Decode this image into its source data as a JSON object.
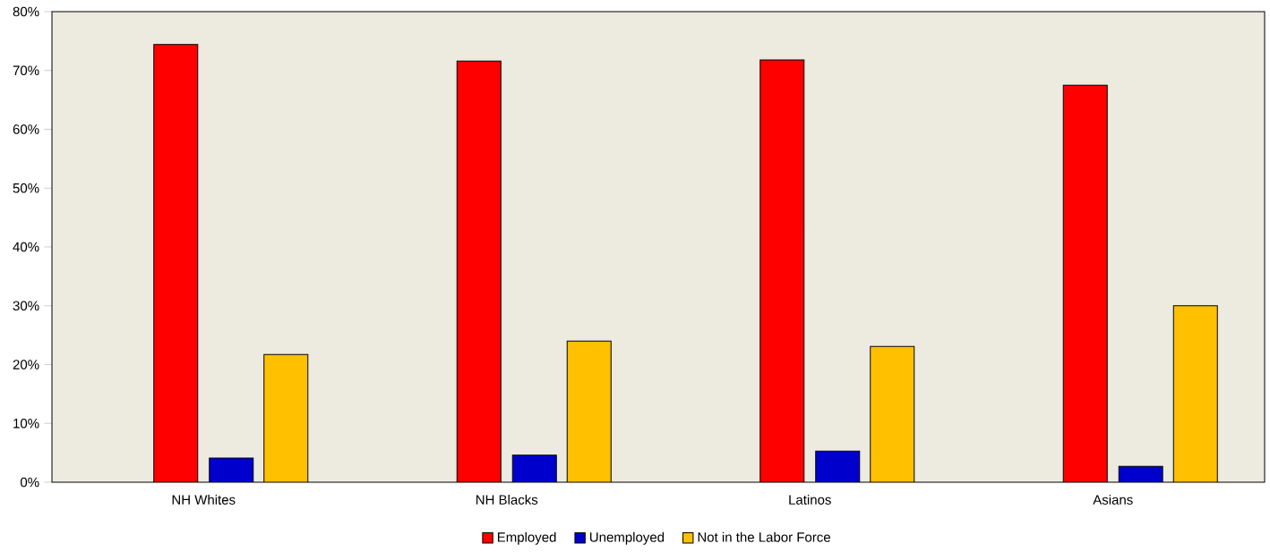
{
  "chart_data": {
    "type": "bar",
    "categories": [
      "NH Whites",
      "NH Blacks",
      "Latinos",
      "Asians"
    ],
    "series": [
      {
        "name": "Employed",
        "color": "#ff0000",
        "values": [
          74.4,
          71.6,
          71.8,
          67.5
        ]
      },
      {
        "name": "Unemployed",
        "color": "#0000cc",
        "values": [
          4.1,
          4.6,
          5.3,
          2.7
        ]
      },
      {
        "name": "Not in the Labor Force",
        "color": "#ffc000",
        "values": [
          21.7,
          24.0,
          23.1,
          30.0
        ]
      }
    ],
    "ylim": [
      0,
      80
    ],
    "yticks": [
      {
        "value": 0,
        "label": "0%"
      },
      {
        "value": 10,
        "label": "10%"
      },
      {
        "value": 20,
        "label": "20%"
      },
      {
        "value": 30,
        "label": "30%"
      },
      {
        "value": 40,
        "label": "40%"
      },
      {
        "value": 50,
        "label": "50%"
      },
      {
        "value": 60,
        "label": "60%"
      },
      {
        "value": 70,
        "label": "70%"
      },
      {
        "value": 80,
        "label": "80%"
      }
    ],
    "grid": false,
    "legend": "bottom"
  }
}
